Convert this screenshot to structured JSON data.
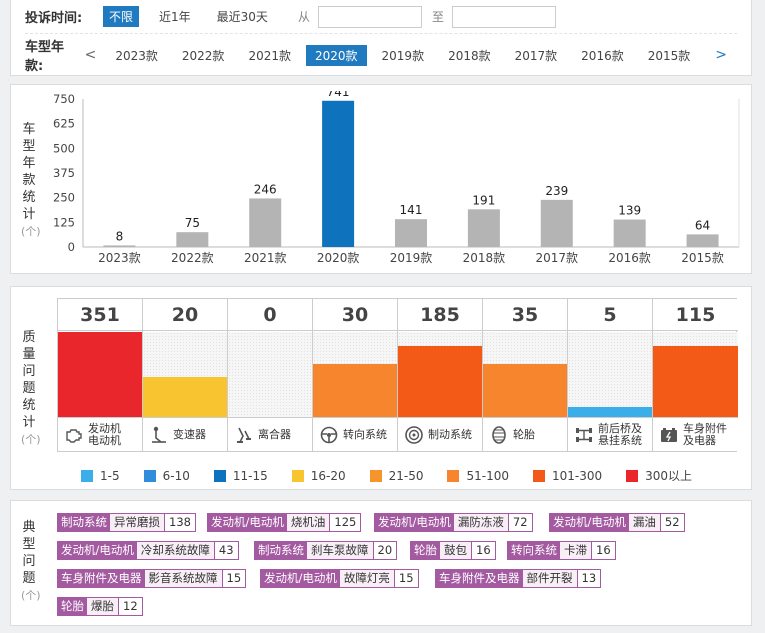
{
  "filter": {
    "time_label": "投诉时间:",
    "time_options": [
      "不限",
      "近1年",
      "最近30天"
    ],
    "time_active": 0,
    "from_label": "从",
    "to_label": "至",
    "from_value": "",
    "to_value": "",
    "year_label": "车型年款:",
    "years": [
      "2023款",
      "2022款",
      "2021款",
      "2020款",
      "2019款",
      "2018款",
      "2017款",
      "2016款",
      "2015款"
    ],
    "year_active": 3,
    "prev_arrow": "<",
    "next_arrow": ">"
  },
  "year_panel": {
    "vertical_label": [
      "车",
      "型",
      "年",
      "款",
      "统",
      "计"
    ],
    "unit": "(个)"
  },
  "chart_data": {
    "type": "bar",
    "categories": [
      "2023款",
      "2022款",
      "2021款",
      "2020款",
      "2019款",
      "2018款",
      "2017款",
      "2016款",
      "2015款"
    ],
    "values": [
      8,
      75,
      246,
      741,
      141,
      191,
      239,
      139,
      64
    ],
    "highlight_index": 3,
    "ylim": [
      0,
      750
    ],
    "yticks": [
      0,
      125,
      250,
      375,
      500,
      625,
      750
    ],
    "bar_color": "#b4b4b4",
    "highlight_color": "#0f72bd",
    "grid": false
  },
  "quality_panel": {
    "vertical_label": [
      "质",
      "量",
      "问",
      "题",
      "统",
      "计"
    ],
    "unit": "(个)",
    "items": [
      {
        "count": "351",
        "value": 351,
        "name": "发动机\n电动机",
        "icon": "engine-icon",
        "color": "#e8262b",
        "level": 1.0
      },
      {
        "count": "20",
        "value": 20,
        "name": "变速器",
        "icon": "gear-shift-icon",
        "color": "#f8c530",
        "level": 0.47
      },
      {
        "count": "0",
        "value": 0,
        "name": "离合器",
        "icon": "clutch-pedal-icon",
        "color": "#f6f6f6",
        "level": 0
      },
      {
        "count": "30",
        "value": 30,
        "name": "转向系统",
        "icon": "steering-wheel-icon",
        "color": "#f7852d",
        "level": 0.62
      },
      {
        "count": "185",
        "value": 185,
        "name": "制动系统",
        "icon": "brake-disc-icon",
        "color": "#f35a18",
        "level": 0.84
      },
      {
        "count": "35",
        "value": 35,
        "name": "轮胎",
        "icon": "tire-icon",
        "color": "#f7852d",
        "level": 0.62
      },
      {
        "count": "5",
        "value": 5,
        "name": "前后桥及\n悬挂系统",
        "icon": "axle-icon",
        "color": "#3aaee9",
        "level": 0.12
      },
      {
        "count": "115",
        "value": 115,
        "name": "车身附件\n及电器",
        "icon": "battery-icon",
        "color": "#f35a18",
        "level": 0.84
      }
    ],
    "legend": [
      {
        "label": "1-5",
        "color": "#3aaee9"
      },
      {
        "label": "6-10",
        "color": "#2f8ddb"
      },
      {
        "label": "11-15",
        "color": "#0f72bd"
      },
      {
        "label": "16-20",
        "color": "#f8c530"
      },
      {
        "label": "21-50",
        "color": "#f7952d"
      },
      {
        "label": "51-100",
        "color": "#f7852d"
      },
      {
        "label": "101-300",
        "color": "#f35a18"
      },
      {
        "label": "300以上",
        "color": "#e8262b"
      }
    ]
  },
  "typical_panel": {
    "vertical_label": [
      "典",
      "型",
      "问",
      "题"
    ],
    "unit": "(个)",
    "tags": [
      {
        "cat": "制动系统",
        "issue": "异常磨损",
        "count": "138"
      },
      {
        "cat": "发动机/电动机",
        "issue": "烧机油",
        "count": "125"
      },
      {
        "cat": "发动机/电动机",
        "issue": "漏防冻液",
        "count": "72"
      },
      {
        "cat": "发动机/电动机",
        "issue": "漏油",
        "count": "52"
      },
      {
        "cat": "发动机/电动机",
        "issue": "冷却系统故障",
        "count": "43"
      },
      {
        "cat": "制动系统",
        "issue": "刹车泵故障",
        "count": "20"
      },
      {
        "cat": "轮胎",
        "issue": "鼓包",
        "count": "16"
      },
      {
        "cat": "转向系统",
        "issue": "卡滞",
        "count": "16"
      },
      {
        "cat": "车身附件及电器",
        "issue": "影音系统故障",
        "count": "15"
      },
      {
        "cat": "发动机/电动机",
        "issue": "故障灯亮",
        "count": "15"
      },
      {
        "cat": "车身附件及电器",
        "issue": "部件开裂",
        "count": "13"
      },
      {
        "cat": "轮胎",
        "issue": "爆胎",
        "count": "12"
      }
    ]
  }
}
